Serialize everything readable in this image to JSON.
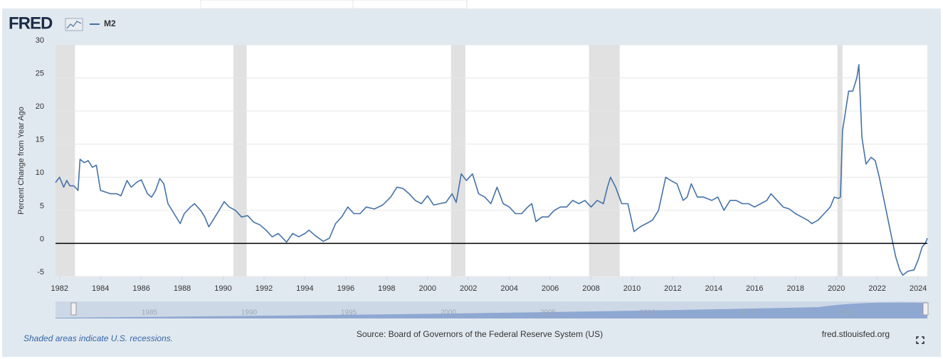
{
  "header": {
    "logo": "FRED"
  },
  "chart_data": {
    "type": "line",
    "y_label": "Percent Change from Year Ago",
    "xlim": [
      1981.8,
      2024.45
    ],
    "xticks": [
      1982,
      1984,
      1986,
      1988,
      1990,
      1992,
      1994,
      1996,
      1998,
      2000,
      2002,
      2004,
      2006,
      2008,
      2010,
      2012,
      2014,
      2016,
      2018,
      2020,
      2022,
      2024
    ],
    "ylim": [
      -5,
      30
    ],
    "yticks": [
      -5,
      0,
      5,
      10,
      15,
      20,
      25,
      30
    ],
    "grid": true,
    "reference_line": 0,
    "recessions": [
      [
        1981.8,
        1982.75
      ],
      [
        1990.5,
        1991.15
      ],
      [
        2001.15,
        2001.85
      ],
      [
        2007.9,
        2009.4
      ],
      [
        2020.05,
        2020.3
      ]
    ],
    "x": [
      1981.8,
      1982.0,
      1982.2,
      1982.35,
      1982.5,
      1982.7,
      1982.9,
      1983.0,
      1983.2,
      1983.4,
      1983.6,
      1983.8,
      1984.0,
      1984.2,
      1984.5,
      1984.8,
      1985.0,
      1985.3,
      1985.5,
      1985.8,
      1986.0,
      1986.3,
      1986.5,
      1986.7,
      1986.9,
      1987.1,
      1987.3,
      1987.6,
      1987.9,
      1988.1,
      1988.4,
      1988.6,
      1988.9,
      1989.1,
      1989.3,
      1989.5,
      1989.8,
      1990.05,
      1990.3,
      1990.6,
      1990.9,
      1991.2,
      1991.5,
      1991.8,
      1992.1,
      1992.4,
      1992.7,
      1993.1,
      1993.4,
      1993.7,
      1994.0,
      1994.2,
      1994.5,
      1994.9,
      1995.2,
      1995.5,
      1995.8,
      1996.1,
      1996.4,
      1996.7,
      1997.0,
      1997.4,
      1997.8,
      1998.2,
      1998.5,
      1998.8,
      1999.1,
      1999.4,
      1999.7,
      2000.0,
      2000.3,
      2000.6,
      2000.9,
      2001.2,
      2001.4,
      2001.65,
      2001.9,
      2002.2,
      2002.5,
      2002.8,
      2003.1,
      2003.4,
      2003.7,
      2004.0,
      2004.3,
      2004.6,
      2004.9,
      2005.1,
      2005.3,
      2005.6,
      2005.9,
      2006.2,
      2006.5,
      2006.8,
      2007.1,
      2007.4,
      2007.7,
      2008.0,
      2008.3,
      2008.6,
      2008.8,
      2008.95,
      2009.2,
      2009.5,
      2009.8,
      2010.1,
      2010.4,
      2010.7,
      2011.0,
      2011.3,
      2011.65,
      2011.9,
      2012.2,
      2012.5,
      2012.7,
      2012.9,
      2013.2,
      2013.5,
      2013.9,
      2014.2,
      2014.5,
      2014.8,
      2015.1,
      2015.4,
      2015.7,
      2016.0,
      2016.3,
      2016.6,
      2016.8,
      2017.1,
      2017.4,
      2017.7,
      2018.0,
      2018.3,
      2018.6,
      2018.8,
      2019.1,
      2019.4,
      2019.7,
      2019.9,
      2020.1,
      2020.2,
      2020.3,
      2020.4,
      2020.6,
      2020.8,
      2021.0,
      2021.1,
      2021.25,
      2021.45,
      2021.7,
      2021.9,
      2022.1,
      2022.3,
      2022.5,
      2022.7,
      2022.9,
      2023.1,
      2023.25,
      2023.5,
      2023.8,
      2024.0,
      2024.2,
      2024.35,
      2024.45
    ],
    "series": [
      {
        "name": "M2",
        "color": "#4572a7",
        "values": [
          9.2,
          10,
          8.5,
          9.5,
          8.7,
          8.7,
          8,
          12.7,
          12.2,
          12.5,
          11.5,
          11.8,
          8,
          7.8,
          7.5,
          7.5,
          7.2,
          9.5,
          8.5,
          9.3,
          9.6,
          7.5,
          7,
          8,
          9.8,
          9,
          6,
          4.5,
          3,
          4.5,
          5.5,
          6,
          5,
          4,
          2.5,
          3.5,
          5,
          6.3,
          5.5,
          5,
          4,
          4.2,
          3.2,
          2.8,
          2,
          1,
          1.5,
          0.2,
          1.5,
          1,
          1.5,
          2,
          1.2,
          0.3,
          0.8,
          3,
          4,
          5.5,
          4.5,
          4.5,
          5.5,
          5.2,
          5.8,
          7,
          8.5,
          8.3,
          7.5,
          6.5,
          6,
          7.2,
          5.8,
          6,
          6.2,
          7.5,
          6.2,
          10.5,
          9.5,
          10.5,
          7.5,
          7,
          6,
          8.5,
          6,
          5.5,
          4.5,
          4.5,
          5.5,
          6,
          3.3,
          4,
          4,
          5,
          5.5,
          5.5,
          6.5,
          6,
          6.5,
          5.5,
          6.5,
          6,
          8.5,
          10,
          8.5,
          6,
          6,
          1.8,
          2.5,
          3,
          3.5,
          5,
          10,
          9.5,
          9,
          6.5,
          7,
          9,
          7,
          7,
          6.5,
          7,
          5,
          6.5,
          6.5,
          6,
          6,
          5.5,
          6,
          6.5,
          7.5,
          6.5,
          5.5,
          5.2,
          4.5,
          4,
          3.5,
          3,
          3.5,
          4.5,
          5.5,
          7,
          6.8,
          7,
          17,
          19,
          23,
          23,
          25,
          27,
          16,
          12,
          13,
          12.5,
          10,
          7,
          4,
          1,
          -2,
          -4,
          -4.8,
          -4.2,
          -4,
          -2.5,
          -0.5,
          0,
          0.8
        ]
      }
    ]
  },
  "navigator": {
    "labels": [
      "1985",
      "1990",
      "1995",
      "2000",
      "2005",
      "2010",
      "2015",
      "2020"
    ]
  },
  "footer": {
    "note": "Shaded areas indicate U.S. recessions.",
    "source": "Source: Board of Governors of the Federal Reserve System (US)",
    "site": "fred.stlouisfed.org"
  }
}
